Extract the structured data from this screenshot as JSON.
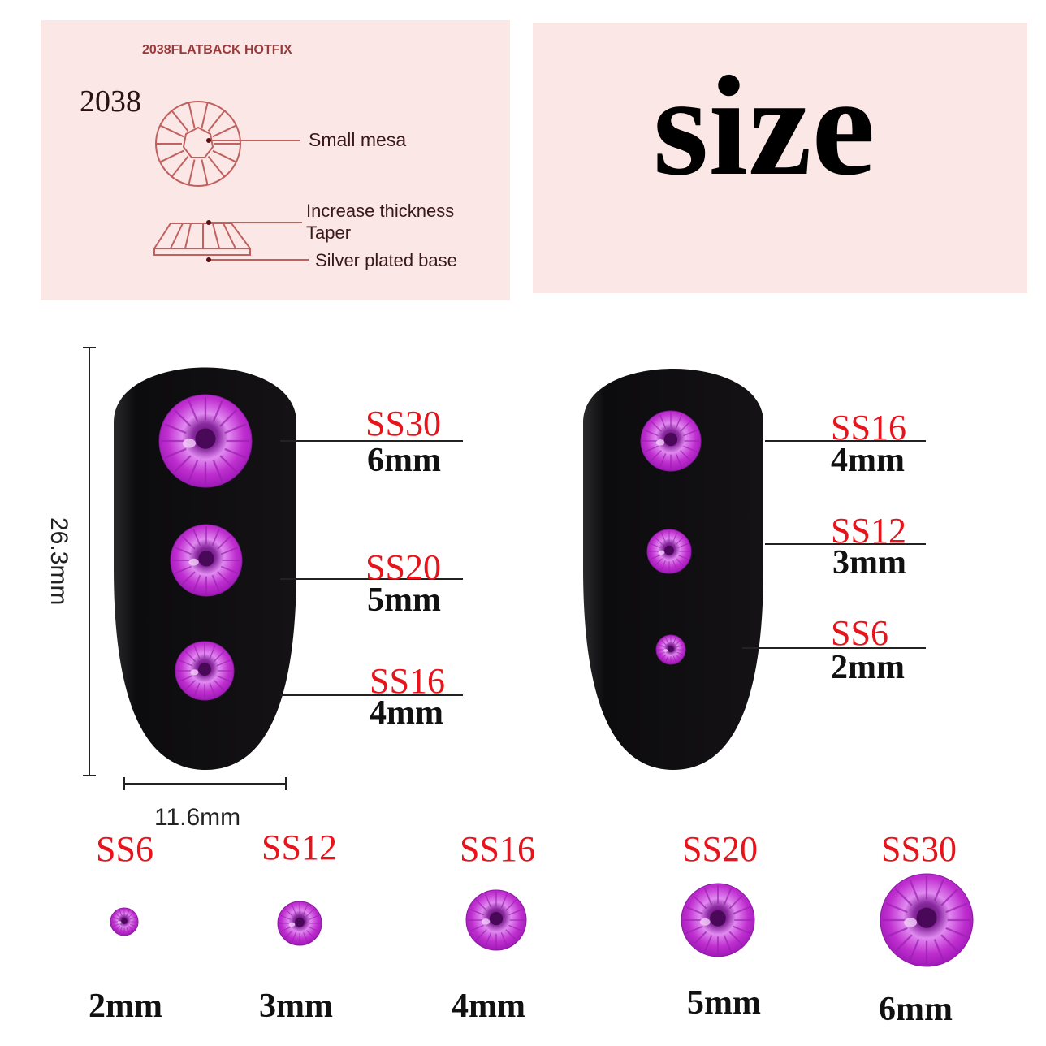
{
  "diagram_panel": {
    "heading": "2038FLATBACK HOTFIX",
    "model": "2038",
    "labels": {
      "small_mesa": "Small mesa",
      "increase_thickness": "Increase thickness",
      "taper": "Taper",
      "silver_base": "Silver plated base"
    }
  },
  "title_panel": {
    "title": "size"
  },
  "colors": {
    "accent_red": "#e8141b",
    "panel_pink": "#fbe8e6",
    "diagram_line": "#c0605f",
    "gem_purple": "#c02fd0",
    "nail_black": "#141214"
  },
  "nail_dimensions": {
    "height": "26.3mm",
    "width": "11.6mm"
  },
  "left_nail": [
    {
      "code": "SS30",
      "size": "6mm"
    },
    {
      "code": "SS20",
      "size": "5mm"
    },
    {
      "code": "SS16",
      "size": "4mm"
    }
  ],
  "right_nail": [
    {
      "code": "SS16",
      "size": "4mm"
    },
    {
      "code": "SS12",
      "size": "3mm"
    },
    {
      "code": "SS6",
      "size": "2mm"
    }
  ],
  "size_row": [
    {
      "code": "SS6",
      "size": "2mm"
    },
    {
      "code": "SS12",
      "size": "3mm"
    },
    {
      "code": "SS16",
      "size": "4mm"
    },
    {
      "code": "SS20",
      "size": "5mm"
    },
    {
      "code": "SS30",
      "size": "6mm"
    }
  ]
}
